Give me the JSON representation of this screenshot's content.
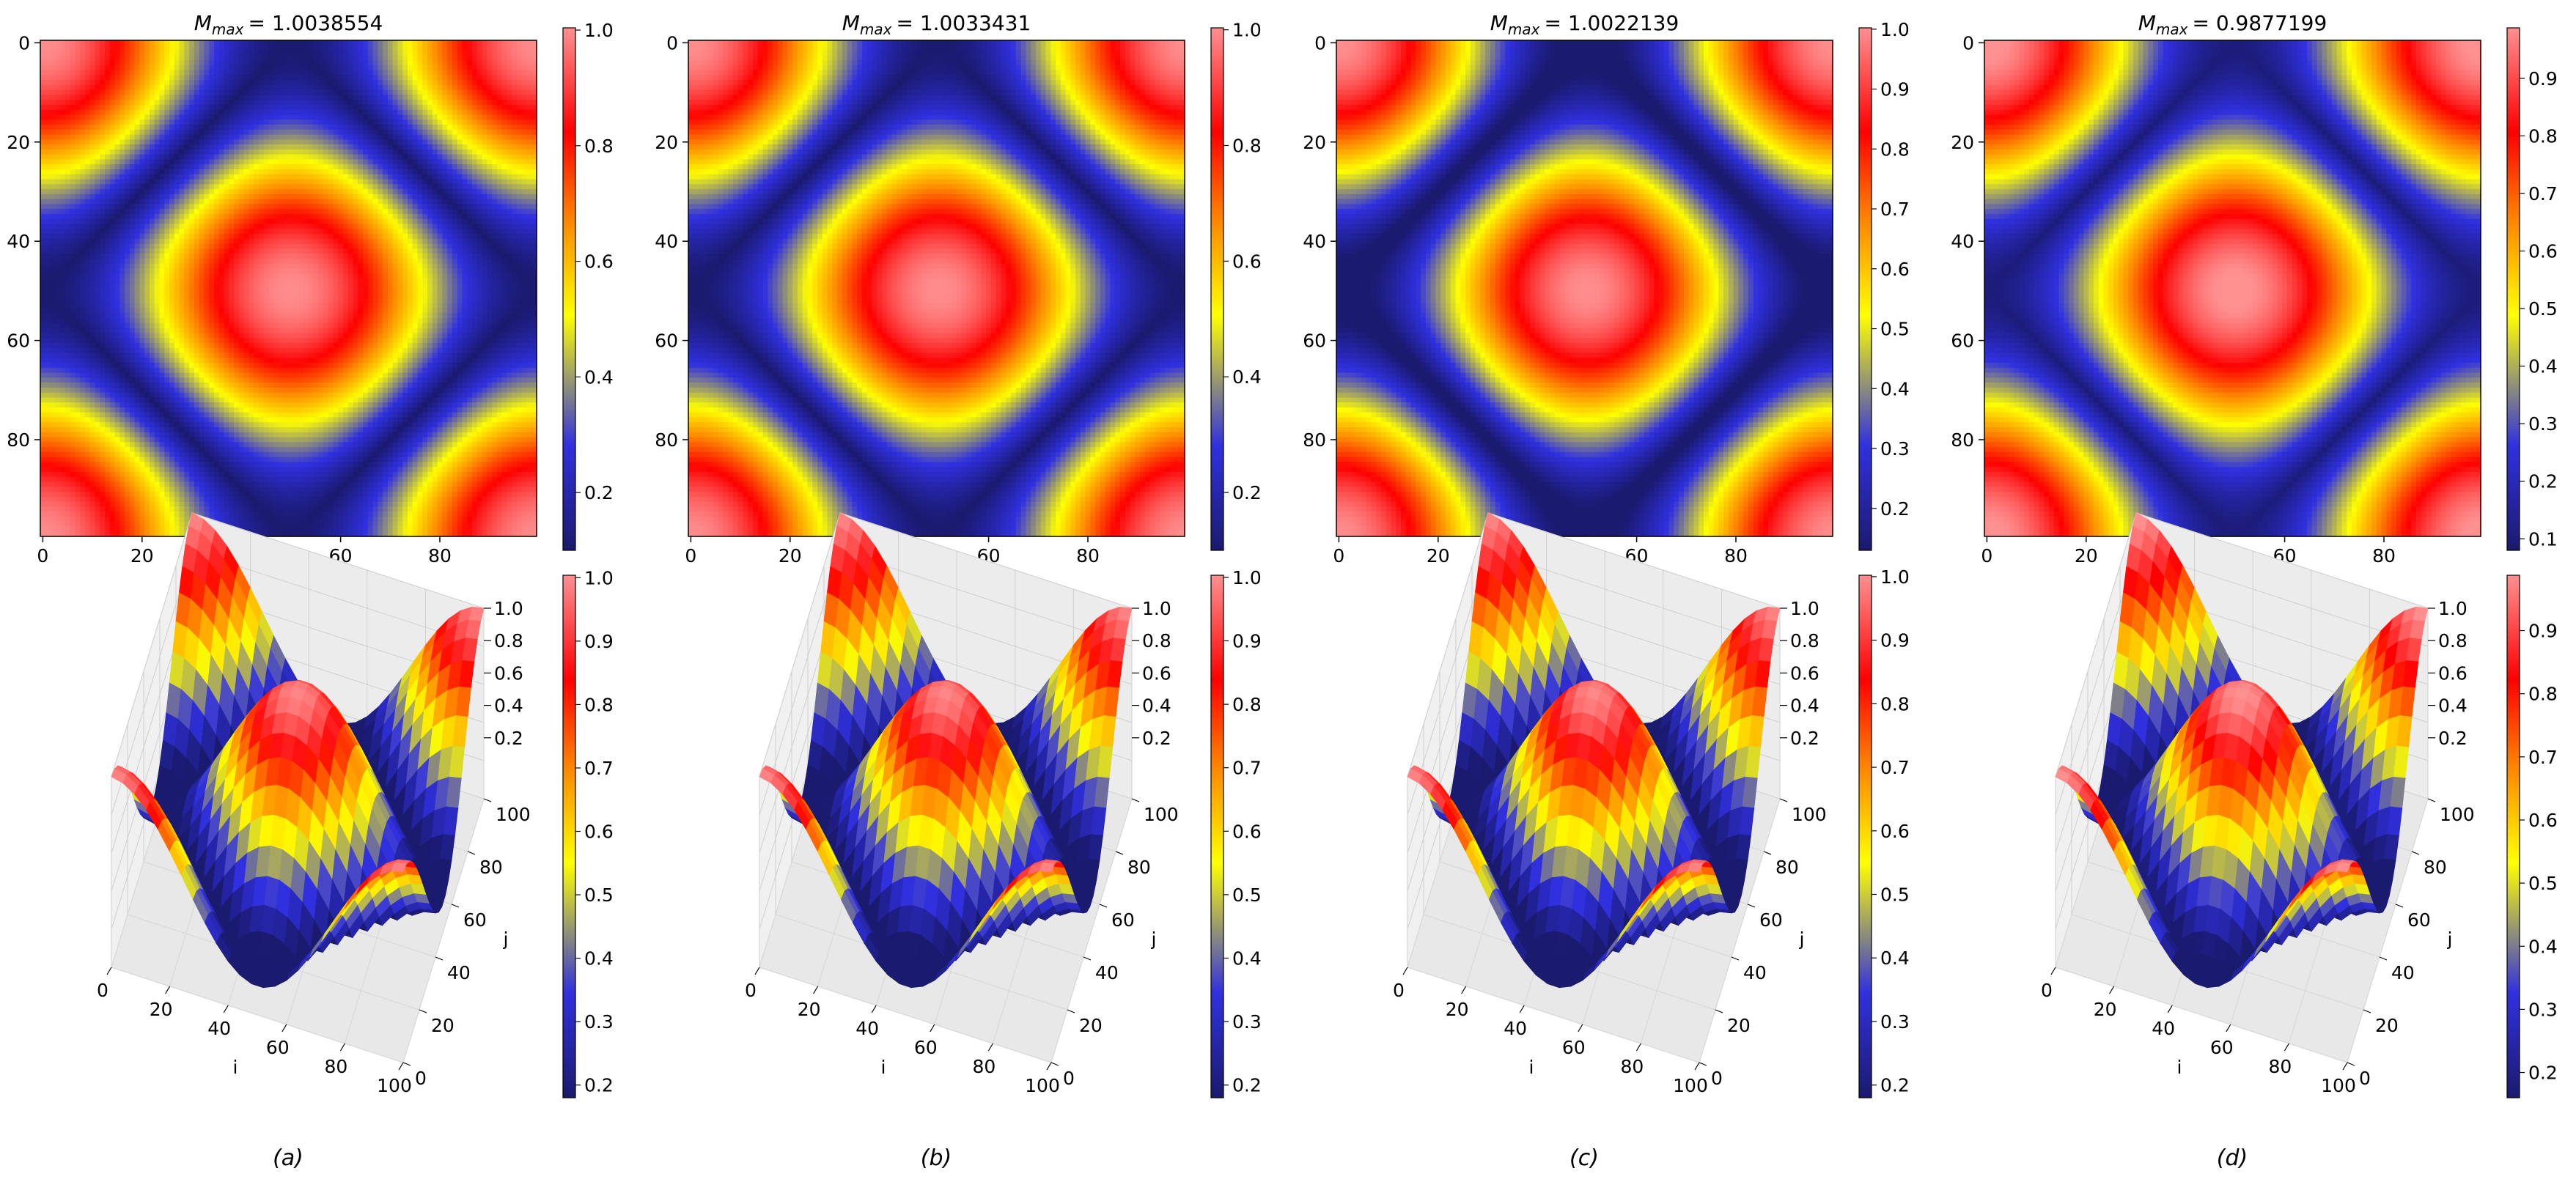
{
  "figure": {
    "panel_labels": [
      "(a)",
      "(b)",
      "(c)",
      "(d)"
    ],
    "colormap": [
      "#1a1a6e",
      "#3030e0",
      "#ffff00",
      "#ff8800",
      "#ff0000",
      "#ff9090"
    ]
  },
  "chart_data": [
    {
      "type": "heatmap",
      "panel": "(a)",
      "title": "M_max = 1.0038554",
      "title_parts": {
        "symbol": "M",
        "subscript": "max",
        "value": "= 1.0038554"
      },
      "x_ticks": [
        "0",
        "20",
        "40",
        "60",
        "80"
      ],
      "y_ticks": [
        "0",
        "20",
        "40",
        "60",
        "80"
      ],
      "colorbar_ticks": [
        "0.2",
        "0.4",
        "0.6",
        "0.8",
        "1.0"
      ],
      "value_range": [
        0.1,
        1.0038554
      ]
    },
    {
      "type": "heatmap",
      "panel": "(b)",
      "title": "M_max = 1.0033431",
      "title_parts": {
        "symbol": "M",
        "subscript": "max",
        "value": "= 1.0033431"
      },
      "x_ticks": [
        "0",
        "20",
        "40",
        "60",
        "80"
      ],
      "y_ticks": [
        "0",
        "20",
        "40",
        "60",
        "80"
      ],
      "colorbar_ticks": [
        "0.2",
        "0.4",
        "0.6",
        "0.8",
        "1.0"
      ],
      "value_range": [
        0.1,
        1.0033431
      ]
    },
    {
      "type": "heatmap",
      "panel": "(c)",
      "title": "M_max = 1.0022139",
      "title_parts": {
        "symbol": "M",
        "subscript": "max",
        "value": "= 1.0022139"
      },
      "x_ticks": [
        "0",
        "20",
        "40",
        "60",
        "80"
      ],
      "y_ticks": [
        "0",
        "20",
        "40",
        "60",
        "80"
      ],
      "colorbar_ticks": [
        "0.2",
        "0.3",
        "0.4",
        "0.5",
        "0.6",
        "0.7",
        "0.8",
        "0.9",
        "1.0"
      ],
      "value_range": [
        0.13,
        1.0022139
      ]
    },
    {
      "type": "heatmap",
      "panel": "(d)",
      "title": "M_max = 0.9877199",
      "title_parts": {
        "symbol": "M",
        "subscript": "max",
        "value": "= 0.9877199"
      },
      "x_ticks": [
        "0",
        "20",
        "40",
        "60",
        "80"
      ],
      "y_ticks": [
        "0",
        "20",
        "40",
        "60",
        "80"
      ],
      "colorbar_ticks": [
        "0.1",
        "0.2",
        "0.3",
        "0.4",
        "0.5",
        "0.6",
        "0.7",
        "0.8",
        "0.9"
      ],
      "value_range": [
        0.08,
        0.9877199
      ]
    },
    {
      "type": "surface3d",
      "panel": "(a)",
      "xlabel": "i",
      "ylabel": "j",
      "x_ticks": [
        "0",
        "20",
        "40",
        "60",
        "80",
        "100"
      ],
      "y_ticks": [
        "0",
        "20",
        "40",
        "60",
        "80",
        "100"
      ],
      "z_ticks": [
        "0.2",
        "0.4",
        "0.6",
        "0.8",
        "1.0"
      ],
      "colorbar_ticks": [
        "0.2",
        "0.3",
        "0.4",
        "0.5",
        "0.6",
        "0.7",
        "0.8",
        "0.9",
        "1.0"
      ],
      "value_range": [
        0.18,
        1.0038554
      ]
    },
    {
      "type": "surface3d",
      "panel": "(b)",
      "xlabel": "i",
      "ylabel": "j",
      "x_ticks": [
        "0",
        "20",
        "40",
        "60",
        "80",
        "100"
      ],
      "y_ticks": [
        "0",
        "20",
        "40",
        "60",
        "80",
        "100"
      ],
      "z_ticks": [
        "0.2",
        "0.4",
        "0.6",
        "0.8",
        "1.0"
      ],
      "colorbar_ticks": [
        "0.2",
        "0.3",
        "0.4",
        "0.5",
        "0.6",
        "0.7",
        "0.8",
        "0.9",
        "1.0"
      ],
      "value_range": [
        0.18,
        1.0033431
      ]
    },
    {
      "type": "surface3d",
      "panel": "(c)",
      "xlabel": "i",
      "ylabel": "j",
      "x_ticks": [
        "0",
        "20",
        "40",
        "60",
        "80",
        "100"
      ],
      "y_ticks": [
        "0",
        "20",
        "40",
        "60",
        "80",
        "100"
      ],
      "z_ticks": [
        "0.2",
        "0.4",
        "0.6",
        "0.8",
        "1.0"
      ],
      "colorbar_ticks": [
        "0.2",
        "0.3",
        "0.4",
        "0.5",
        "0.6",
        "0.7",
        "0.8",
        "0.9",
        "1.0"
      ],
      "value_range": [
        0.18,
        1.0022139
      ]
    },
    {
      "type": "surface3d",
      "panel": "(d)",
      "xlabel": "i",
      "ylabel": "j",
      "x_ticks": [
        "0",
        "20",
        "40",
        "60",
        "80",
        "100"
      ],
      "y_ticks": [
        "0",
        "20",
        "40",
        "60",
        "80",
        "100"
      ],
      "z_ticks": [
        "0.2",
        "0.4",
        "0.6",
        "0.8",
        "1.0"
      ],
      "colorbar_ticks": [
        "0.2",
        "0.3",
        "0.4",
        "0.5",
        "0.6",
        "0.7",
        "0.8",
        "0.9"
      ],
      "value_range": [
        0.16,
        0.9877199
      ]
    }
  ]
}
